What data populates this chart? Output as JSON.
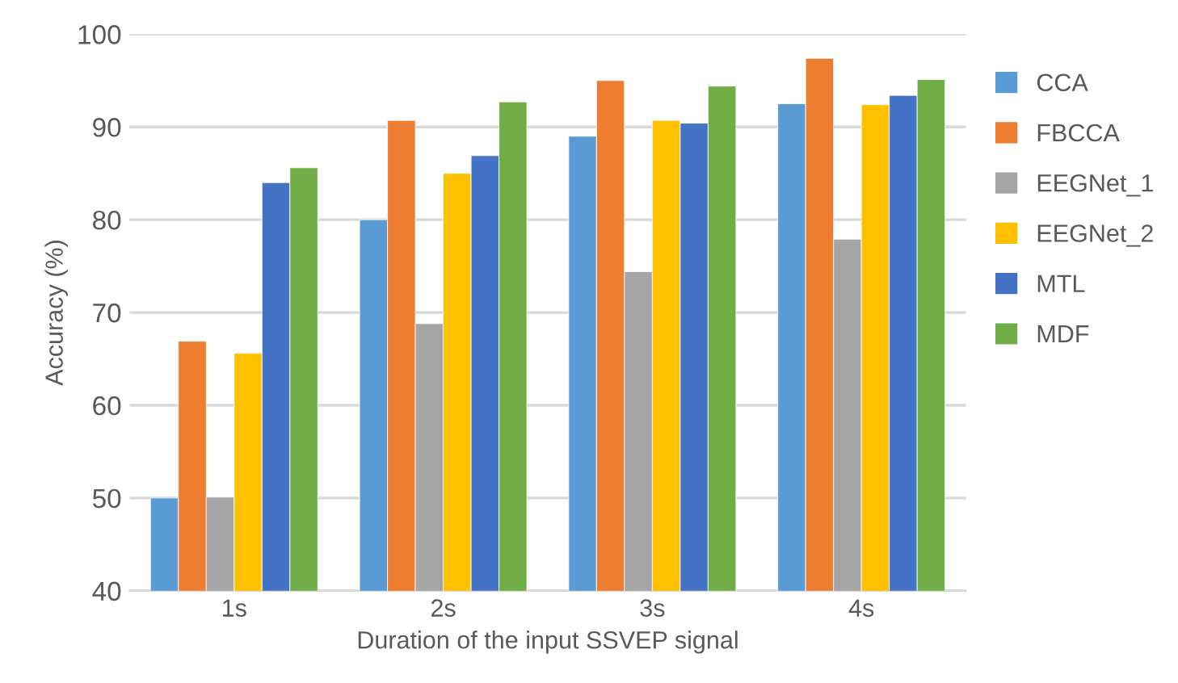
{
  "chart_data": {
    "type": "bar",
    "xlabel": "Duration of the input SSVEP signal",
    "ylabel": "Accuracy (%)",
    "categories": [
      "1s",
      "2s",
      "3s",
      "4s"
    ],
    "series": [
      {
        "name": "CCA",
        "color": "#5b9bd5",
        "values": [
          50.0,
          80.0,
          89.0,
          92.5
        ]
      },
      {
        "name": "FBCCA",
        "color": "#ed7d31",
        "values": [
          66.9,
          90.7,
          95.0,
          97.4
        ]
      },
      {
        "name": "EEGNet_1",
        "color": "#a5a5a5",
        "values": [
          50.1,
          68.8,
          74.4,
          77.9
        ]
      },
      {
        "name": "EEGNet_2",
        "color": "#ffc000",
        "values": [
          65.6,
          85.0,
          90.7,
          92.4
        ]
      },
      {
        "name": "MTL",
        "color": "#4472c4",
        "values": [
          84.0,
          86.9,
          90.4,
          93.4
        ]
      },
      {
        "name": "MDF",
        "color": "#70ad47",
        "values": [
          85.6,
          92.7,
          94.4,
          95.1
        ]
      }
    ],
    "ylim": [
      40,
      100
    ],
    "yticks": [
      40,
      50,
      60,
      70,
      80,
      90,
      100
    ],
    "grid": "y",
    "legend": "right"
  }
}
